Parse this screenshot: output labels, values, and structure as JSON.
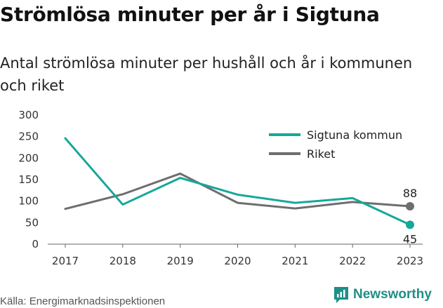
{
  "title": "Strömlösa minuter per år i Sigtuna",
  "subtitle": "Antal strömlösa minuter per hushåll och år i kommunen och riket",
  "source": "Källa: Energimarknadsinspektionen",
  "brand": {
    "name": "Newsworthy",
    "icon": "newsworthy-logo-icon",
    "color": "#1f8f86"
  },
  "chart_data": {
    "type": "line",
    "title": "Strömlösa minuter per år i Sigtuna",
    "subtitle": "Antal strömlösa minuter per hushåll och år i kommunen och riket",
    "xlabel": "",
    "ylabel": "",
    "x": [
      "2017",
      "2018",
      "2019",
      "2020",
      "2021",
      "2022",
      "2023"
    ],
    "ylim": [
      0,
      300
    ],
    "yticks": [
      0,
      50,
      100,
      150,
      200,
      250,
      300
    ],
    "grid": false,
    "legend_position": "top-right",
    "series": [
      {
        "name": "Sigtuna kommun",
        "color": "#16a89a",
        "values": [
          246,
          92,
          154,
          115,
          96,
          107,
          45
        ]
      },
      {
        "name": "Riket",
        "color": "#6e6e6e",
        "values": [
          82,
          116,
          164,
          96,
          83,
          98,
          88
        ]
      }
    ],
    "end_labels": [
      {
        "series": "Riket",
        "text": "88"
      },
      {
        "series": "Sigtuna kommun",
        "text": "45"
      }
    ]
  }
}
